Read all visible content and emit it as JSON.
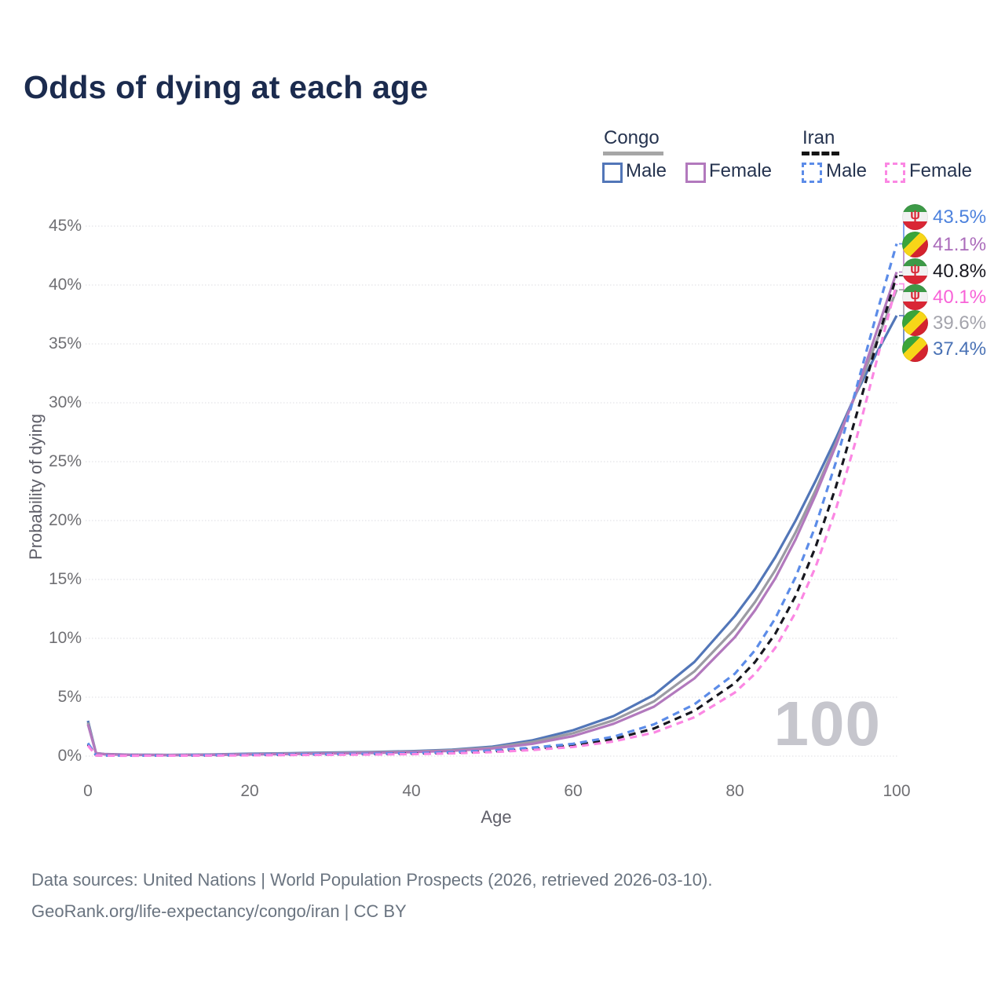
{
  "title": "Odds of dying at each age",
  "legend": {
    "groups": [
      {
        "key": "congo",
        "label": "Congo",
        "entries": [
          {
            "key": "congo_male",
            "label": "Male"
          },
          {
            "key": "congo_female",
            "label": "Female"
          }
        ]
      },
      {
        "key": "iran",
        "label": "Iran",
        "entries": [
          {
            "key": "iran_male",
            "label": "Male"
          },
          {
            "key": "iran_female",
            "label": "Female"
          }
        ]
      }
    ]
  },
  "chart_data": {
    "type": "line",
    "title": "Odds of dying at each age",
    "xlabel": "Age",
    "ylabel": "Probability of dying",
    "xlim": [
      0,
      100
    ],
    "ylim": [
      0,
      45
    ],
    "grid": true,
    "x_ticks": [
      0,
      20,
      40,
      60,
      80,
      100
    ],
    "y_ticks": [
      0,
      5,
      10,
      15,
      20,
      25,
      30,
      35,
      40,
      45
    ],
    "y_tick_labels": [
      "0%",
      "5%",
      "10%",
      "15%",
      "20%",
      "25%",
      "30%",
      "35%",
      "40%",
      "45%"
    ],
    "x": [
      0,
      1,
      2,
      5,
      10,
      15,
      20,
      25,
      30,
      35,
      40,
      45,
      50,
      55,
      60,
      65,
      70,
      75,
      80,
      82.5,
      85,
      87.5,
      90,
      92.5,
      95,
      97.5,
      100
    ],
    "series": [
      {
        "key": "congo_male",
        "name": "Congo Male",
        "color": "#5276b8",
        "dashed": false,
        "values": [
          3.0,
          0.25,
          0.18,
          0.12,
          0.1,
          0.13,
          0.2,
          0.25,
          0.3,
          0.35,
          0.42,
          0.55,
          0.8,
          1.35,
          2.2,
          3.4,
          5.2,
          8.0,
          11.9,
          14.2,
          16.9,
          20.0,
          23.4,
          27.0,
          30.8,
          34.2,
          37.4
        ]
      },
      {
        "key": "congo_both",
        "name": "Congo",
        "color": "#9b9ba3",
        "dashed": false,
        "values": [
          2.85,
          0.24,
          0.17,
          0.11,
          0.09,
          0.12,
          0.17,
          0.21,
          0.26,
          0.31,
          0.38,
          0.5,
          0.72,
          1.2,
          1.95,
          3.05,
          4.65,
          7.2,
          10.8,
          13.1,
          15.8,
          19.0,
          22.6,
          26.6,
          30.8,
          35.2,
          39.6
        ]
      },
      {
        "key": "congo_female",
        "name": "Congo Female",
        "color": "#b279bd",
        "dashed": false,
        "values": [
          2.7,
          0.23,
          0.16,
          0.11,
          0.08,
          0.1,
          0.14,
          0.18,
          0.22,
          0.27,
          0.34,
          0.45,
          0.65,
          1.05,
          1.7,
          2.75,
          4.2,
          6.6,
          10.1,
          12.4,
          15.1,
          18.4,
          22.2,
          26.4,
          30.9,
          36.0,
          41.1
        ]
      },
      {
        "key": "iran_both",
        "name": "Iran",
        "color": "#17171f",
        "dashed": true,
        "values": [
          1.0,
          0.07,
          0.05,
          0.04,
          0.04,
          0.06,
          0.09,
          0.12,
          0.14,
          0.17,
          0.21,
          0.28,
          0.41,
          0.62,
          0.92,
          1.45,
          2.35,
          3.85,
          6.2,
          8.0,
          10.4,
          13.6,
          17.8,
          22.9,
          28.9,
          35.0,
          40.8
        ]
      },
      {
        "key": "iran_male",
        "name": "Iran Male",
        "color": "#5c8ce8",
        "dashed": true,
        "values": [
          1.1,
          0.08,
          0.05,
          0.04,
          0.05,
          0.08,
          0.12,
          0.15,
          0.17,
          0.2,
          0.25,
          0.33,
          0.48,
          0.72,
          1.05,
          1.65,
          2.7,
          4.4,
          7.0,
          9.0,
          11.7,
          15.2,
          19.6,
          25.0,
          31.2,
          37.5,
          43.5
        ]
      },
      {
        "key": "iran_female",
        "name": "Iran Female",
        "color": "#fb87e3",
        "dashed": true,
        "values": [
          0.9,
          0.06,
          0.04,
          0.03,
          0.04,
          0.05,
          0.07,
          0.09,
          0.11,
          0.13,
          0.17,
          0.23,
          0.34,
          0.52,
          0.78,
          1.25,
          2.0,
          3.3,
          5.4,
          7.0,
          9.2,
          12.2,
          16.1,
          21.0,
          26.9,
          33.5,
          40.1
        ]
      }
    ],
    "end_labels": [
      {
        "icon": "iran-flag",
        "series": "iran_male",
        "text": "43.5%",
        "color": "#4d82dd"
      },
      {
        "icon": "congo-flag",
        "series": "congo_female",
        "text": "41.1%",
        "color": "#ab6cbb"
      },
      {
        "icon": "iran-flag",
        "series": "iran_both",
        "text": "40.8%",
        "color": "#17171f"
      },
      {
        "icon": "iran-flag",
        "series": "iran_female",
        "text": "40.1%",
        "color": "#f863d8"
      },
      {
        "icon": "congo-flag",
        "series": "congo_both",
        "text": "39.6%",
        "color": "#a4a4ac"
      },
      {
        "icon": "congo-flag",
        "series": "congo_male",
        "text": "37.4%",
        "color": "#4a72b5"
      }
    ],
    "watermark": "100",
    "legend_position": "top-right"
  },
  "footer": {
    "line1": "Data sources: United Nations | World Population Prospects (2026, retrieved 2026-03-10).",
    "line2": "GeoRank.org/life-expectancy/congo/iran | CC BY"
  },
  "colors": {
    "title_text": "#1b2b4e",
    "axis_text": "#6f6f73",
    "gridline": "#e3e3e8",
    "watermark_text": "#c6c6cd",
    "congo_underline": "#a6a6a6",
    "iran_underline": "#141414"
  }
}
